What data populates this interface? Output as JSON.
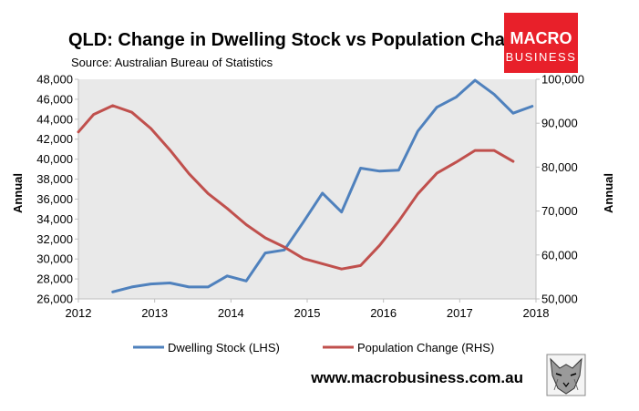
{
  "header": {
    "title": "QLD: Change in Dwelling Stock vs Population Change",
    "source": "Source: Australian Bureau of Statistics"
  },
  "brand": {
    "line1": "MACRO",
    "line2": "BUSINESS",
    "color": "#e8202a",
    "website": "www.macrobusiness.com.au",
    "mascot_icon": "wolf-icon"
  },
  "colors": {
    "plot_background": "#e9e9e9",
    "dwelling": "#4f81bd",
    "population": "#c0504d"
  },
  "chart_data": {
    "type": "line",
    "title": "QLD: Change in Dwelling Stock vs Population Change",
    "x_ticks": [
      "2012",
      "2013",
      "2014",
      "2015",
      "2016",
      "2017",
      "2018"
    ],
    "xlim": [
      2012,
      2018
    ],
    "ylim_left": [
      26000,
      48000
    ],
    "ylim_right": [
      50000,
      100000
    ],
    "y_left_ticks": [
      "26,000",
      "28,000",
      "30,000",
      "32,000",
      "34,000",
      "36,000",
      "38,000",
      "40,000",
      "42,000",
      "44,000",
      "46,000",
      "48,000"
    ],
    "y_right_ticks": [
      "50,000",
      "60,000",
      "70,000",
      "80,000",
      "90,000",
      "100,000"
    ],
    "ylabel_left": "Annual",
    "ylabel_right": "Annual",
    "legend_position": "bottom",
    "grid": false,
    "series": [
      {
        "name": "Dwelling Stock (LHS)",
        "axis": "left",
        "x": [
          2012.45,
          2012.7,
          2012.95,
          2013.2,
          2013.45,
          2013.7,
          2013.95,
          2014.2,
          2014.45,
          2014.7,
          2014.95,
          2015.2,
          2015.45,
          2015.7,
          2015.95,
          2016.2,
          2016.45,
          2016.7,
          2016.95,
          2017.2,
          2017.45,
          2017.7,
          2017.95
        ],
        "values": [
          26700,
          27200,
          27500,
          27600,
          27200,
          27200,
          28300,
          27800,
          30600,
          30900,
          33700,
          36600,
          34700,
          39100,
          38800,
          38900,
          42800,
          45200,
          46200,
          47900,
          46500,
          44600,
          45300
        ]
      },
      {
        "name": "Population Change (RHS)",
        "axis": "right",
        "x": [
          2012.0,
          2012.2,
          2012.45,
          2012.7,
          2012.95,
          2013.2,
          2013.45,
          2013.7,
          2013.95,
          2014.2,
          2014.45,
          2014.7,
          2014.95,
          2015.2,
          2015.45,
          2015.7,
          2015.95,
          2016.2,
          2016.45,
          2016.7,
          2016.95,
          2017.2,
          2017.45,
          2017.7
        ],
        "values": [
          88000,
          92000,
          94000,
          92500,
          88800,
          83900,
          78500,
          74000,
          70600,
          66900,
          63900,
          61800,
          59200,
          58000,
          56800,
          57600,
          62200,
          67700,
          73900,
          78600,
          81100,
          83800,
          83800,
          81300
        ]
      }
    ]
  }
}
